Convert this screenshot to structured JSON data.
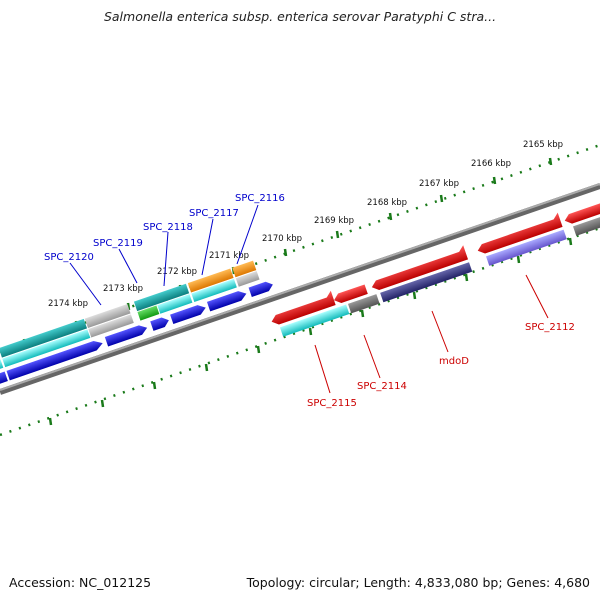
{
  "title": "Salmonella enterica subsp. enterica serovar Paratyphi C stra...",
  "footer": {
    "accession": "Accession: NC_012125",
    "summary": "Topology: circular; Length: 4,833,080 bp; Genes: 4,680"
  },
  "ruler": {
    "ticks": [
      {
        "label": "2165 kbp"
      },
      {
        "label": "2166 kbp"
      },
      {
        "label": "2167 kbp"
      },
      {
        "label": "2168 kbp"
      },
      {
        "label": "2169 kbp"
      },
      {
        "label": "2170 kbp"
      },
      {
        "label": "2171 kbp"
      },
      {
        "label": "2172 kbp"
      },
      {
        "label": "2173 kbp"
      },
      {
        "label": "2174 kbp"
      }
    ]
  },
  "gene_labels": {
    "left": [
      "SPC_2120",
      "SPC_2119",
      "SPC_2118",
      "SPC_2117",
      "SPC_2116"
    ],
    "right": [
      "SPC_2115",
      "SPC_2114",
      "mdoD",
      "SPC_2112"
    ]
  },
  "colors": {
    "ruler_tick": "#1a7a1a",
    "backbone": "#888888",
    "gene_blue": "#0000dd",
    "gene_red": "#ee0000",
    "gene_cyan": "#22cccc",
    "gene_teal": "#119999",
    "gene_gray": "#aaaaaa",
    "gene_darkgray": "#666666",
    "gene_orange": "#ee8800",
    "gene_navy": "#333388",
    "gene_lavender": "#7766dd",
    "gene_green": "#22aa22",
    "label_blue": "#0000cc",
    "label_red": "#cc0000"
  }
}
